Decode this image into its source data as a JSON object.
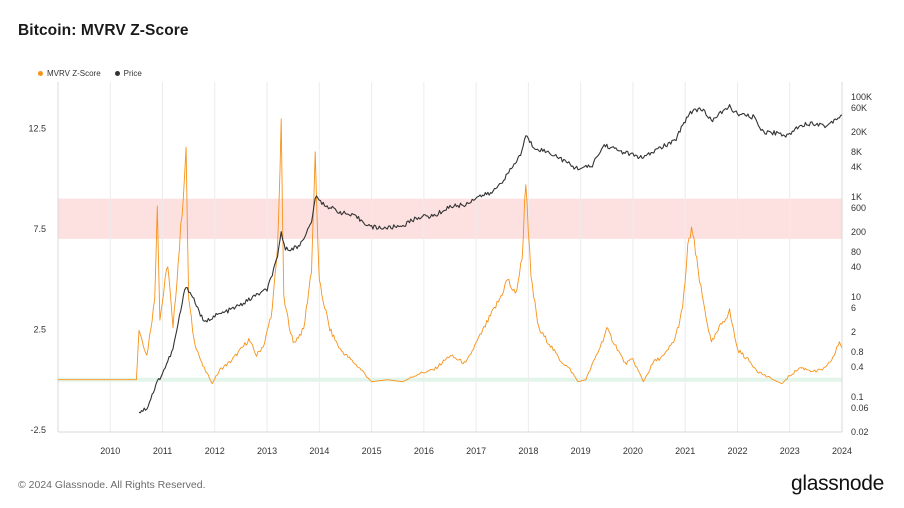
{
  "header": {
    "title": "Bitcoin: MVRV Z-Score"
  },
  "legend": [
    {
      "label": "MVRV Z-Score",
      "color": "#f7931a"
    },
    {
      "label": "Price",
      "color": "#333333"
    }
  ],
  "footer": {
    "copyright": "© 2024 Glassnode. All Rights Reserved.",
    "brand": "glassnode"
  },
  "chart_data": {
    "type": "line",
    "title": "Bitcoin: MVRV Z-Score",
    "x_range": [
      2009.0,
      2024.0
    ],
    "x_ticks": [
      "2010",
      "2011",
      "2012",
      "2013",
      "2014",
      "2015",
      "2016",
      "2017",
      "2018",
      "2019",
      "2020",
      "2021",
      "2022",
      "2023",
      "2024"
    ],
    "y_left": {
      "range": [
        -2.6,
        14.8
      ],
      "ticks": [
        "-2.5",
        "2.5",
        "7.5",
        "12.5"
      ],
      "tick_values": [
        -2.5,
        2.5,
        7.5,
        12.5
      ]
    },
    "y_right": {
      "scale": "log",
      "range": [
        0.02,
        200000
      ],
      "ticks": [
        "0.02",
        "0.06",
        "0.1",
        "0.4",
        "0.8",
        "2",
        "6",
        "10",
        "40",
        "80",
        "200",
        "600",
        "1K",
        "4K",
        "8K",
        "20K",
        "60K",
        "100K"
      ],
      "tick_values": [
        0.02,
        0.06,
        0.1,
        0.4,
        0.8,
        2,
        6,
        10,
        40,
        80,
        200,
        600,
        1000,
        4000,
        8000,
        20000,
        60000,
        100000
      ]
    },
    "bands": [
      {
        "name": "overvalued",
        "y_from": 7.0,
        "y_to": 9.0,
        "color": "#fde0e0"
      },
      {
        "name": "undervalued",
        "y_from": -0.1,
        "y_to": 0.1,
        "color": "#e3f5ea"
      }
    ],
    "series": [
      {
        "name": "MVRV Z-Score",
        "axis": "left",
        "color": "#f7931a",
        "points": [
          [
            2009.0,
            0.0
          ],
          [
            2010.5,
            0.0
          ],
          [
            2010.55,
            2.5
          ],
          [
            2010.7,
            1.2
          ],
          [
            2010.85,
            4.0
          ],
          [
            2010.9,
            8.8
          ],
          [
            2010.95,
            3.0
          ],
          [
            2011.1,
            5.8
          ],
          [
            2011.2,
            2.5
          ],
          [
            2011.35,
            7.5
          ],
          [
            2011.45,
            11.2
          ],
          [
            2011.5,
            4.0
          ],
          [
            2011.6,
            2.0
          ],
          [
            2011.75,
            0.8
          ],
          [
            2011.85,
            0.3
          ],
          [
            2011.95,
            -0.2
          ],
          [
            2012.1,
            0.5
          ],
          [
            2012.3,
            0.9
          ],
          [
            2012.5,
            1.5
          ],
          [
            2012.65,
            2.0
          ],
          [
            2012.8,
            1.2
          ],
          [
            2012.95,
            1.8
          ],
          [
            2013.1,
            3.5
          ],
          [
            2013.2,
            6.5
          ],
          [
            2013.27,
            12.5
          ],
          [
            2013.32,
            4.0
          ],
          [
            2013.5,
            1.8
          ],
          [
            2013.7,
            2.5
          ],
          [
            2013.85,
            5.5
          ],
          [
            2013.92,
            11.0
          ],
          [
            2014.0,
            4.8
          ],
          [
            2014.2,
            2.5
          ],
          [
            2014.4,
            1.5
          ],
          [
            2014.6,
            1.0
          ],
          [
            2014.8,
            0.5
          ],
          [
            2015.0,
            -0.1
          ],
          [
            2015.3,
            0.0
          ],
          [
            2015.6,
            -0.1
          ],
          [
            2015.9,
            0.3
          ],
          [
            2016.2,
            0.5
          ],
          [
            2016.5,
            1.2
          ],
          [
            2016.8,
            0.8
          ],
          [
            2017.0,
            1.8
          ],
          [
            2017.2,
            2.8
          ],
          [
            2017.45,
            4.0
          ],
          [
            2017.6,
            5.0
          ],
          [
            2017.75,
            4.2
          ],
          [
            2017.88,
            6.0
          ],
          [
            2017.95,
            10.0
          ],
          [
            2018.05,
            5.0
          ],
          [
            2018.2,
            2.5
          ],
          [
            2018.4,
            1.8
          ],
          [
            2018.6,
            1.0
          ],
          [
            2018.8,
            0.5
          ],
          [
            2018.95,
            -0.1
          ],
          [
            2019.1,
            0.0
          ],
          [
            2019.35,
            1.5
          ],
          [
            2019.5,
            2.5
          ],
          [
            2019.65,
            1.8
          ],
          [
            2019.85,
            0.8
          ],
          [
            2020.0,
            1.0
          ],
          [
            2020.2,
            -0.1
          ],
          [
            2020.4,
            0.9
          ],
          [
            2020.6,
            1.2
          ],
          [
            2020.8,
            2.0
          ],
          [
            2020.95,
            3.5
          ],
          [
            2021.05,
            6.5
          ],
          [
            2021.12,
            7.6
          ],
          [
            2021.3,
            4.5
          ],
          [
            2021.5,
            1.8
          ],
          [
            2021.7,
            2.8
          ],
          [
            2021.85,
            3.4
          ],
          [
            2022.0,
            1.5
          ],
          [
            2022.2,
            1.0
          ],
          [
            2022.4,
            0.4
          ],
          [
            2022.6,
            0.1
          ],
          [
            2022.85,
            -0.2
          ],
          [
            2023.0,
            0.2
          ],
          [
            2023.2,
            0.6
          ],
          [
            2023.5,
            0.4
          ],
          [
            2023.7,
            0.6
          ],
          [
            2023.85,
            1.2
          ],
          [
            2023.95,
            1.9
          ],
          [
            2024.0,
            1.6
          ]
        ]
      },
      {
        "name": "Price",
        "axis": "right",
        "color": "#333333",
        "points": [
          [
            2010.55,
            0.05
          ],
          [
            2010.7,
            0.06
          ],
          [
            2010.9,
            0.2
          ],
          [
            2011.0,
            0.3
          ],
          [
            2011.2,
            0.9
          ],
          [
            2011.4,
            10
          ],
          [
            2011.45,
            17
          ],
          [
            2011.6,
            9
          ],
          [
            2011.8,
            3
          ],
          [
            2011.95,
            4
          ],
          [
            2012.2,
            5
          ],
          [
            2012.5,
            7
          ],
          [
            2012.8,
            11
          ],
          [
            2013.0,
            14
          ],
          [
            2013.2,
            60
          ],
          [
            2013.27,
            200
          ],
          [
            2013.35,
            90
          ],
          [
            2013.6,
            100
          ],
          [
            2013.85,
            300
          ],
          [
            2013.92,
            1000
          ],
          [
            2014.1,
            700
          ],
          [
            2014.4,
            500
          ],
          [
            2014.7,
            400
          ],
          [
            2015.0,
            250
          ],
          [
            2015.3,
            240
          ],
          [
            2015.6,
            270
          ],
          [
            2015.9,
            400
          ],
          [
            2016.2,
            420
          ],
          [
            2016.5,
            650
          ],
          [
            2016.8,
            700
          ],
          [
            2017.0,
            1000
          ],
          [
            2017.3,
            1200
          ],
          [
            2017.6,
            2800
          ],
          [
            2017.85,
            7000
          ],
          [
            2017.95,
            17000
          ],
          [
            2018.1,
            10000
          ],
          [
            2018.5,
            7000
          ],
          [
            2018.9,
            3800
          ],
          [
            2019.2,
            4000
          ],
          [
            2019.45,
            11000
          ],
          [
            2019.8,
            8000
          ],
          [
            2020.2,
            6000
          ],
          [
            2020.5,
            9500
          ],
          [
            2020.8,
            13000
          ],
          [
            2020.95,
            28000
          ],
          [
            2021.1,
            50000
          ],
          [
            2021.3,
            60000
          ],
          [
            2021.5,
            34000
          ],
          [
            2021.85,
            65000
          ],
          [
            2022.0,
            45000
          ],
          [
            2022.3,
            40000
          ],
          [
            2022.5,
            20000
          ],
          [
            2022.8,
            19000
          ],
          [
            2022.95,
            16500
          ],
          [
            2023.2,
            28000
          ],
          [
            2023.5,
            30000
          ],
          [
            2023.7,
            26000
          ],
          [
            2023.85,
            35000
          ],
          [
            2024.0,
            44000
          ]
        ]
      }
    ]
  }
}
